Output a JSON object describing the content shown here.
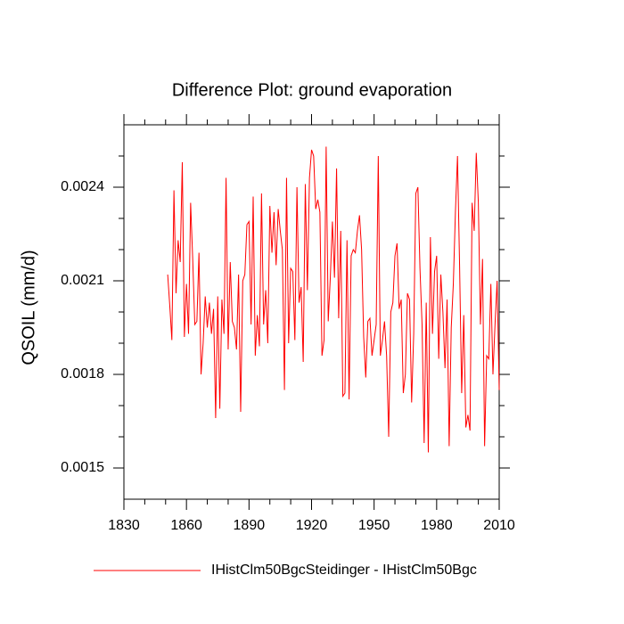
{
  "chart_data": {
    "type": "line",
    "title": "Difference Plot: ground evaporation",
    "y_label": "QSOIL  (mm/d)",
    "xlim": [
      1830,
      2010
    ],
    "xticks": [
      1830,
      1860,
      1890,
      1920,
      1950,
      1980,
      2010
    ],
    "xminor_ticks": [
      1840,
      1850,
      1870,
      1880,
      1900,
      1910,
      1930,
      1940,
      1960,
      1970,
      1990,
      2000
    ],
    "ylim": [
      0.0014,
      0.0026
    ],
    "yticks": [
      0.0015,
      0.0018,
      0.0021,
      0.0024
    ],
    "yminor_ticks": [
      0.0016,
      0.0017,
      0.0019,
      0.002,
      0.0022,
      0.0023,
      0.0025
    ],
    "legend": "bottom-left",
    "x": [
      1851,
      1852,
      1853,
      1854,
      1855,
      1856,
      1857,
      1858,
      1859,
      1860,
      1861,
      1862,
      1863,
      1864,
      1865,
      1866,
      1867,
      1868,
      1869,
      1870,
      1871,
      1872,
      1873,
      1874,
      1875,
      1876,
      1877,
      1878,
      1879,
      1880,
      1881,
      1882,
      1883,
      1884,
      1885,
      1886,
      1887,
      1888,
      1889,
      1890,
      1891,
      1892,
      1893,
      1894,
      1895,
      1896,
      1897,
      1898,
      1899,
      1900,
      1901,
      1902,
      1903,
      1904,
      1905,
      1906,
      1907,
      1908,
      1909,
      1910,
      1911,
      1912,
      1913,
      1914,
      1915,
      1916,
      1917,
      1918,
      1919,
      1920,
      1921,
      1922,
      1923,
      1924,
      1925,
      1926,
      1927,
      1928,
      1929,
      1930,
      1931,
      1932,
      1933,
      1934,
      1935,
      1936,
      1937,
      1938,
      1939,
      1940,
      1941,
      1942,
      1943,
      1944,
      1945,
      1946,
      1947,
      1948,
      1949,
      1950,
      1951,
      1952,
      1953,
      1954,
      1955,
      1956,
      1957,
      1958,
      1959,
      1960,
      1961,
      1962,
      1963,
      1964,
      1965,
      1966,
      1967,
      1968,
      1969,
      1970,
      1971,
      1972,
      1973,
      1974,
      1975,
      1976,
      1977,
      1978,
      1979,
      1980,
      1981,
      1982,
      1983,
      1984,
      1985,
      1986,
      1987,
      1988,
      1989,
      1990,
      1991,
      1992,
      1993,
      1994,
      1995,
      1996,
      1997,
      1998,
      1999,
      2000,
      2001,
      2002,
      2003,
      2004,
      2005,
      2006,
      2007,
      2008,
      2009,
      2010
    ],
    "series": [
      {
        "name": "IHistClm50BgcSteidinger - IHistClm50Bgc",
        "color": "#ff0000",
        "values": [
          0.00212,
          0.00202,
          0.00191,
          0.00239,
          0.00206,
          0.00223,
          0.00216,
          0.00248,
          0.00192,
          0.00209,
          0.00193,
          0.00235,
          0.00217,
          0.00196,
          0.00197,
          0.00219,
          0.0018,
          0.0019,
          0.00205,
          0.00195,
          0.00203,
          0.00193,
          0.00201,
          0.00166,
          0.00205,
          0.00169,
          0.00204,
          0.00193,
          0.00243,
          0.00188,
          0.00216,
          0.00197,
          0.00195,
          0.00188,
          0.00212,
          0.00168,
          0.0021,
          0.00212,
          0.00228,
          0.00229,
          0.00196,
          0.00237,
          0.00186,
          0.00199,
          0.00189,
          0.00238,
          0.00196,
          0.00207,
          0.0019,
          0.00234,
          0.00219,
          0.00232,
          0.00215,
          0.00233,
          0.00226,
          0.0022,
          0.00175,
          0.00243,
          0.0019,
          0.00214,
          0.00213,
          0.00191,
          0.0024,
          0.00203,
          0.00208,
          0.00184,
          0.00241,
          0.00207,
          0.00243,
          0.00252,
          0.0025,
          0.00233,
          0.00236,
          0.00232,
          0.00186,
          0.00191,
          0.00253,
          0.00197,
          0.00211,
          0.00229,
          0.00211,
          0.00246,
          0.00198,
          0.00226,
          0.00173,
          0.00174,
          0.00223,
          0.00172,
          0.00218,
          0.0022,
          0.00219,
          0.00226,
          0.00231,
          0.0022,
          0.00192,
          0.00179,
          0.00197,
          0.00198,
          0.00186,
          0.00191,
          0.00196,
          0.0025,
          0.00186,
          0.00191,
          0.00197,
          0.00186,
          0.0016,
          0.002,
          0.00203,
          0.00218,
          0.00222,
          0.00201,
          0.00204,
          0.00174,
          0.0018,
          0.00206,
          0.00204,
          0.00171,
          0.00193,
          0.00238,
          0.0024,
          0.00214,
          0.00196,
          0.00158,
          0.00203,
          0.00155,
          0.00224,
          0.00193,
          0.00213,
          0.00218,
          0.00185,
          0.00212,
          0.002,
          0.00182,
          0.00204,
          0.00157,
          0.00195,
          0.00209,
          0.00232,
          0.0025,
          0.00215,
          0.00174,
          0.00199,
          0.00163,
          0.00167,
          0.00162,
          0.00235,
          0.00226,
          0.00251,
          0.00235,
          0.00196,
          0.00217,
          0.00157,
          0.00186,
          0.00185,
          0.00209,
          0.0018,
          0.00196,
          0.0021,
          0.00175
        ]
      }
    ]
  }
}
